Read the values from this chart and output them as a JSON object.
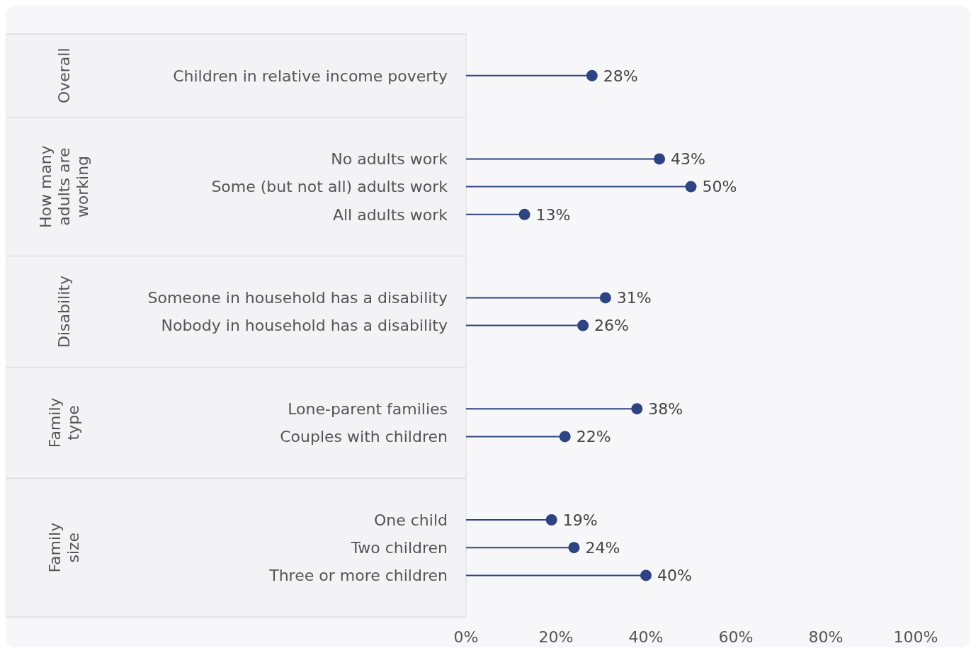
{
  "chart_data": {
    "type": "lollipop",
    "orientation": "horizontal",
    "categories": [
      null,
      "Children in relative income poverty",
      null,
      null,
      "No adults work",
      "Some (but not all) adults work",
      "All adults work",
      null,
      null,
      "Someone in household has a disability",
      "Nobody in household has a disability",
      null,
      null,
      "Lone-parent families",
      "Couples with children",
      null,
      null,
      "One child",
      "Two children",
      "Three or more children",
      null
    ],
    "values": [
      null,
      28,
      null,
      null,
      43,
      50,
      13,
      null,
      null,
      31,
      26,
      null,
      null,
      38,
      22,
      null,
      null,
      19,
      24,
      40,
      null
    ],
    "value_labels": [
      null,
      "28%",
      null,
      null,
      "43%",
      "50%",
      "13%",
      null,
      null,
      "31%",
      "26%",
      null,
      null,
      "38%",
      "22%",
      null,
      null,
      "19%",
      "24%",
      "40%",
      null
    ],
    "color": "#2e4381",
    "xlim": [
      0,
      100
    ],
    "xticks": [
      {
        "value": 0,
        "label": "0%"
      },
      {
        "value": 20,
        "label": "20%"
      },
      {
        "value": 40,
        "label": "40%"
      },
      {
        "value": 60,
        "label": "60%"
      },
      {
        "value": 80,
        "label": "80%"
      },
      {
        "value": 100,
        "label": "100%"
      }
    ],
    "annotations": [
      "Overall",
      "How many adults are working",
      "Disability",
      "Family type",
      "Family size"
    ],
    "marker": "circle"
  }
}
